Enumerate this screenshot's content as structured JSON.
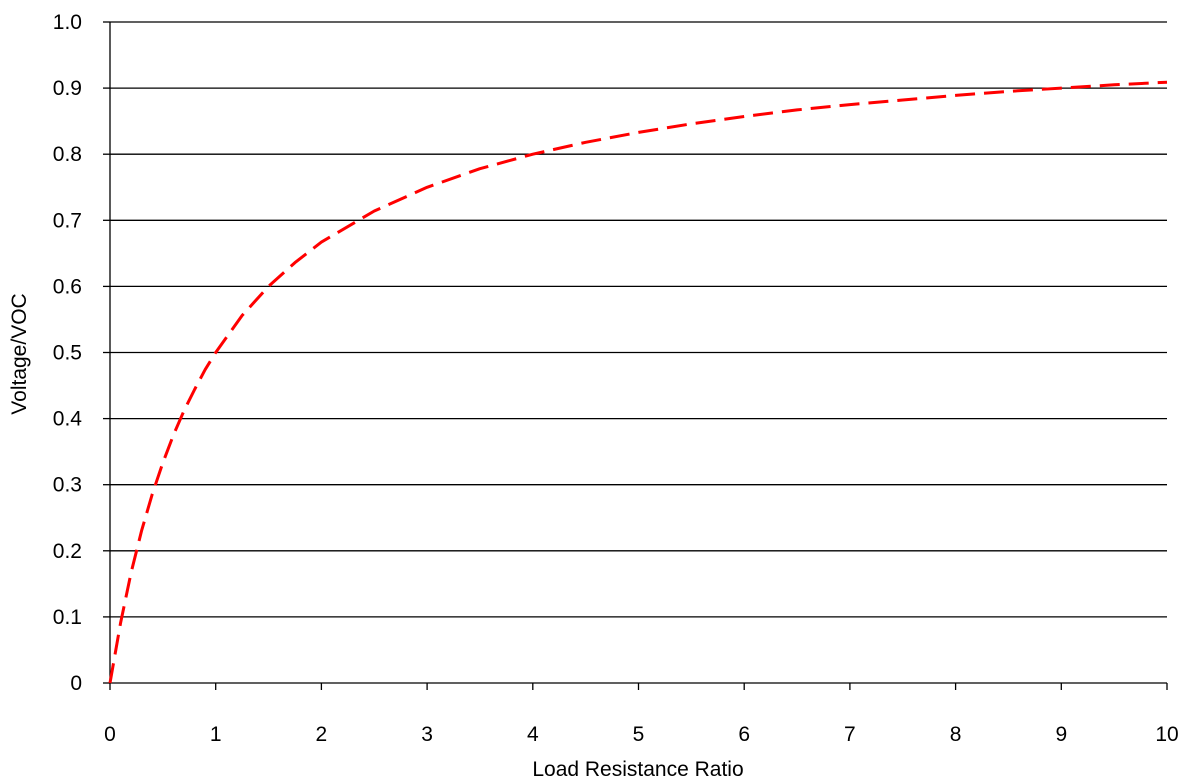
{
  "chart_data": {
    "type": "line",
    "title": "",
    "xlabel": "Load Resistance Ratio",
    "ylabel": "Voltage/VOC",
    "xlim": [
      0,
      10
    ],
    "ylim": [
      0,
      1.0
    ],
    "x_ticks": [
      "0",
      "1",
      "2",
      "3",
      "4",
      "5",
      "6",
      "7",
      "8",
      "9",
      "10"
    ],
    "y_ticks": [
      "0",
      "0.1",
      "0.2",
      "0.3",
      "0.4",
      "0.5",
      "0.6",
      "0.7",
      "0.8",
      "0.9",
      "1.0"
    ],
    "grid": "horizontal",
    "legend": "none",
    "series": [
      {
        "color": "#ff0000",
        "line_style": "dashed",
        "x": [
          0,
          0.1,
          0.2,
          0.3,
          0.4,
          0.5,
          0.6,
          0.7,
          0.8,
          0.9,
          1,
          1.25,
          1.5,
          1.75,
          2,
          2.5,
          3,
          3.5,
          4,
          4.5,
          5,
          5.5,
          6,
          6.5,
          7,
          7.5,
          8,
          8.5,
          9,
          9.5,
          10
        ],
        "y": [
          0,
          0.091,
          0.167,
          0.231,
          0.286,
          0.333,
          0.375,
          0.412,
          0.444,
          0.474,
          0.5,
          0.556,
          0.6,
          0.636,
          0.667,
          0.714,
          0.75,
          0.778,
          0.8,
          0.818,
          0.833,
          0.846,
          0.857,
          0.867,
          0.875,
          0.882,
          0.889,
          0.895,
          0.9,
          0.905,
          0.909
        ]
      }
    ]
  }
}
